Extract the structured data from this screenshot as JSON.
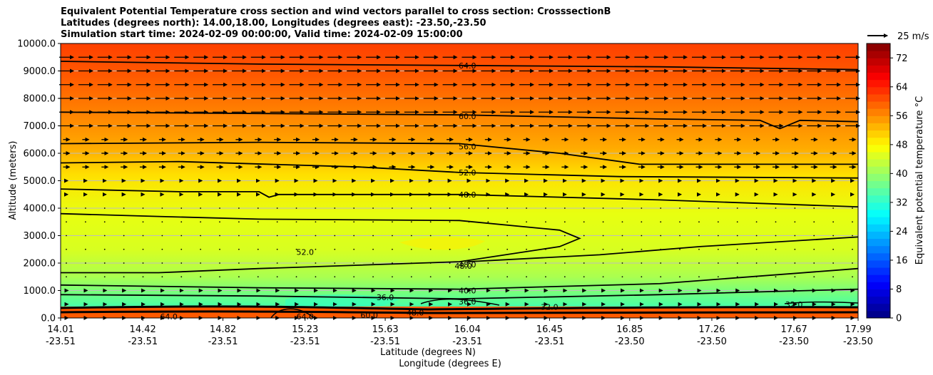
{
  "chart_data": {
    "type": "heatmap",
    "title_lines": [
      "Equivalent Potential Temperature cross section and wind vectors parallel to cross section: CrosssectionB",
      "Latitudes (degrees north): 14.00,18.00, Longitudes (degrees east): -23.50,-23.50",
      "Simulation start time: 2024-02-09 00:00:00, Valid time: 2024-02-09 15:00:00"
    ],
    "xlabel_lat": "Latitude (degrees N)",
    "xlabel_lon": "Longitude (degrees E)",
    "ylabel": "Altitude (meters)",
    "x_ticks_lat": [
      "14.01",
      "14.42",
      "14.82",
      "15.23",
      "15.63",
      "16.04",
      "16.45",
      "16.85",
      "17.26",
      "17.67",
      "17.99"
    ],
    "x_ticks_lon": [
      "-23.51",
      "-23.51",
      "-23.51",
      "-23.51",
      "-23.51",
      "-23.51",
      "-23.51",
      "-23.50",
      "-23.50",
      "-23.50",
      "-23.50"
    ],
    "y_ticks": [
      "0.0",
      "1000.0",
      "2000.0",
      "3000.0",
      "4000.0",
      "5000.0",
      "6000.0",
      "7000.0",
      "8000.0",
      "9000.0",
      "10000.0"
    ],
    "ylim": [
      0,
      10000
    ],
    "grid": "horizontal",
    "colorbar": {
      "label": "Equivalent potential temperature $^\\circ$C",
      "label_display": "Equivalent potential temperature °C",
      "ticks": [
        "0",
        "8",
        "16",
        "24",
        "32",
        "40",
        "48",
        "56",
        "64",
        "72"
      ],
      "range": [
        0,
        76
      ]
    },
    "quiver_key": "25 m/s",
    "contour_labels": [
      {
        "text": "64.0",
        "lat": 16.04,
        "alt": 9200
      },
      {
        "text": "60.0",
        "lat": 16.04,
        "alt": 7350
      },
      {
        "text": "56.0",
        "lat": 16.04,
        "alt": 6250
      },
      {
        "text": "52.0",
        "lat": 16.04,
        "alt": 5300
      },
      {
        "text": "48.0",
        "lat": 16.04,
        "alt": 4500
      },
      {
        "text": "52.0",
        "lat": 15.23,
        "alt": 2400
      },
      {
        "text": "48.0",
        "lat": 16.04,
        "alt": 1950
      },
      {
        "text": "48.0",
        "lat": 16.02,
        "alt": 1900
      },
      {
        "text": "40.0",
        "lat": 16.04,
        "alt": 1000
      },
      {
        "text": "36.0",
        "lat": 16.04,
        "alt": 600
      },
      {
        "text": "36.0",
        "lat": 15.63,
        "alt": 750
      },
      {
        "text": "32.0",
        "lat": 16.45,
        "alt": 400
      },
      {
        "text": "32.0",
        "lat": 17.67,
        "alt": 500
      },
      {
        "text": "64.0",
        "lat": 14.55,
        "alt": 50
      },
      {
        "text": "64.0",
        "lat": 15.23,
        "alt": 50
      },
      {
        "text": "60.0",
        "lat": 15.55,
        "alt": 100
      },
      {
        "text": "48.0",
        "lat": 15.78,
        "alt": 200
      }
    ],
    "contour_levels": [
      64,
      60,
      56,
      52,
      48,
      40,
      36
    ],
    "isolines": [
      {
        "level": 64,
        "lat": [
          14.01,
          15.0,
          16.0,
          17.0,
          17.99
        ],
        "alt": [
          9350,
          9250,
          9200,
          9150,
          9050
        ]
      },
      {
        "level": 60,
        "lat": [
          14.01,
          15.0,
          16.0,
          17.0,
          17.5,
          17.6,
          17.7,
          17.99
        ],
        "alt": [
          7500,
          7450,
          7400,
          7250,
          7200,
          6900,
          7200,
          7150
        ]
      },
      {
        "level": 56,
        "lat": [
          14.01,
          15.0,
          16.0,
          16.5,
          16.9,
          17.99
        ],
        "alt": [
          6350,
          6400,
          6350,
          6000,
          5600,
          5600
        ]
      },
      {
        "level": 52,
        "lat": [
          14.01,
          14.6,
          15.5,
          16.0,
          16.8,
          17.99
        ],
        "alt": [
          5650,
          5700,
          5500,
          5300,
          5150,
          5100
        ]
      },
      {
        "level": 48,
        "lat": [
          14.01,
          14.6,
          15.0,
          15.05,
          15.1,
          16.0,
          17.0,
          17.99
        ],
        "alt": [
          4700,
          4600,
          4600,
          4400,
          4500,
          4500,
          4300,
          4050
        ]
      },
      {
        "level": 48,
        "lat": [
          14.01,
          14.5,
          15.0,
          16.0,
          16.5,
          16.6,
          16.5,
          16.0,
          15.0,
          14.5,
          14.01
        ],
        "alt": [
          3800,
          3700,
          3600,
          3550,
          3200,
          2900,
          2600,
          2050,
          1800,
          1650,
          1650
        ]
      },
      {
        "level": 48,
        "lat": [
          16.04,
          16.7,
          17.2,
          17.99
        ],
        "alt": [
          2050,
          2300,
          2600,
          2950
        ]
      },
      {
        "level": 40,
        "lat": [
          14.01,
          15.0,
          16.0,
          17.0,
          17.99
        ],
        "alt": [
          1200,
          1100,
          1050,
          1250,
          1800
        ]
      },
      {
        "level": 36,
        "lat": [
          14.01,
          15.0,
          16.0,
          17.0,
          17.99
        ],
        "alt": [
          850,
          800,
          700,
          850,
          1050
        ]
      }
    ]
  }
}
